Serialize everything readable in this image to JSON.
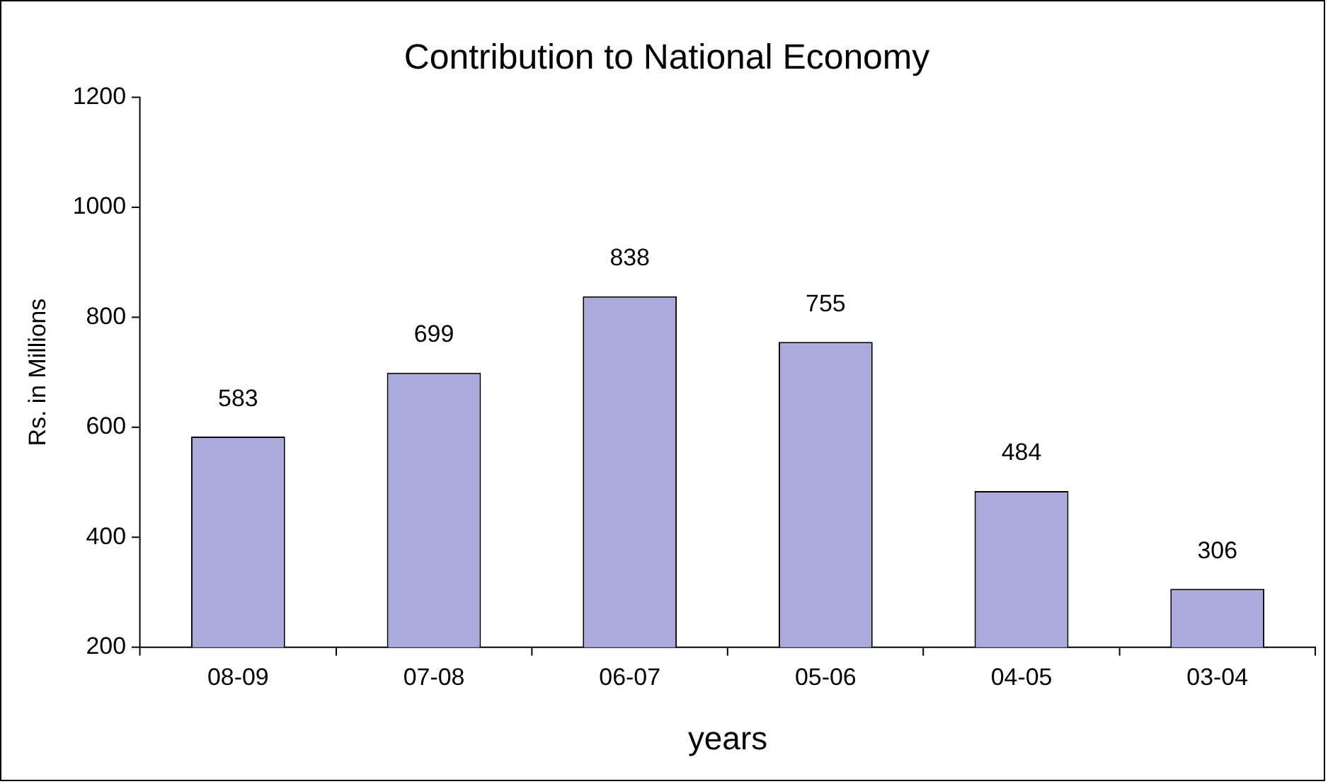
{
  "chart_data": {
    "type": "bar",
    "title": "Contribution to National Economy",
    "xlabel": "years",
    "ylabel": "Rs. in Millions",
    "categories": [
      "08-09",
      "07-08",
      "06-07",
      "05-06",
      "04-05",
      "03-04"
    ],
    "values": [
      583,
      699,
      838,
      755,
      484,
      306
    ],
    "color": "#aaaadd",
    "ylim": [
      200,
      1200
    ],
    "yticks": [
      200,
      400,
      600,
      800,
      1000,
      1200
    ],
    "grid": false,
    "legend": false,
    "data_labels": true
  }
}
